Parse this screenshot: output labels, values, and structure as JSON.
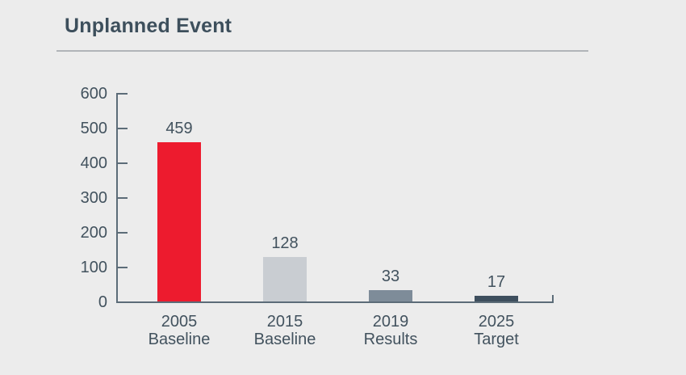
{
  "page": {
    "title": "Unplanned Event"
  },
  "chart_data": {
    "type": "bar",
    "title": "Unplanned Event",
    "categories": [
      "2005 Baseline",
      "2015 Baseline",
      "2019 Results",
      "2025 Target"
    ],
    "category_lines": [
      [
        "2005",
        "Baseline"
      ],
      [
        "2015",
        "Baseline"
      ],
      [
        "2019",
        "Results"
      ],
      [
        "2025",
        "Target"
      ]
    ],
    "values": [
      459,
      128,
      33,
      17
    ],
    "value_labels": [
      "459",
      "128",
      "33",
      "17"
    ],
    "bar_colors": [
      "#ed1b2e",
      "#c9cdd2",
      "#7e8c99",
      "#3e4f5e"
    ],
    "ylim": [
      0,
      600
    ],
    "yticks": [
      0,
      100,
      200,
      300,
      400,
      500,
      600
    ],
    "ytick_labels": [
      "0",
      "100",
      "200",
      "300",
      "400",
      "500",
      "600"
    ],
    "xlabel": "",
    "ylabel": "",
    "grid": false,
    "legend": false
  },
  "colors": {
    "background": "#ececec",
    "title_text": "#3d4f5c",
    "label_text": "#42525e",
    "axis": "#5c6c78",
    "divider": "#b1b4b9",
    "accent_red": "#ed1b2e"
  }
}
